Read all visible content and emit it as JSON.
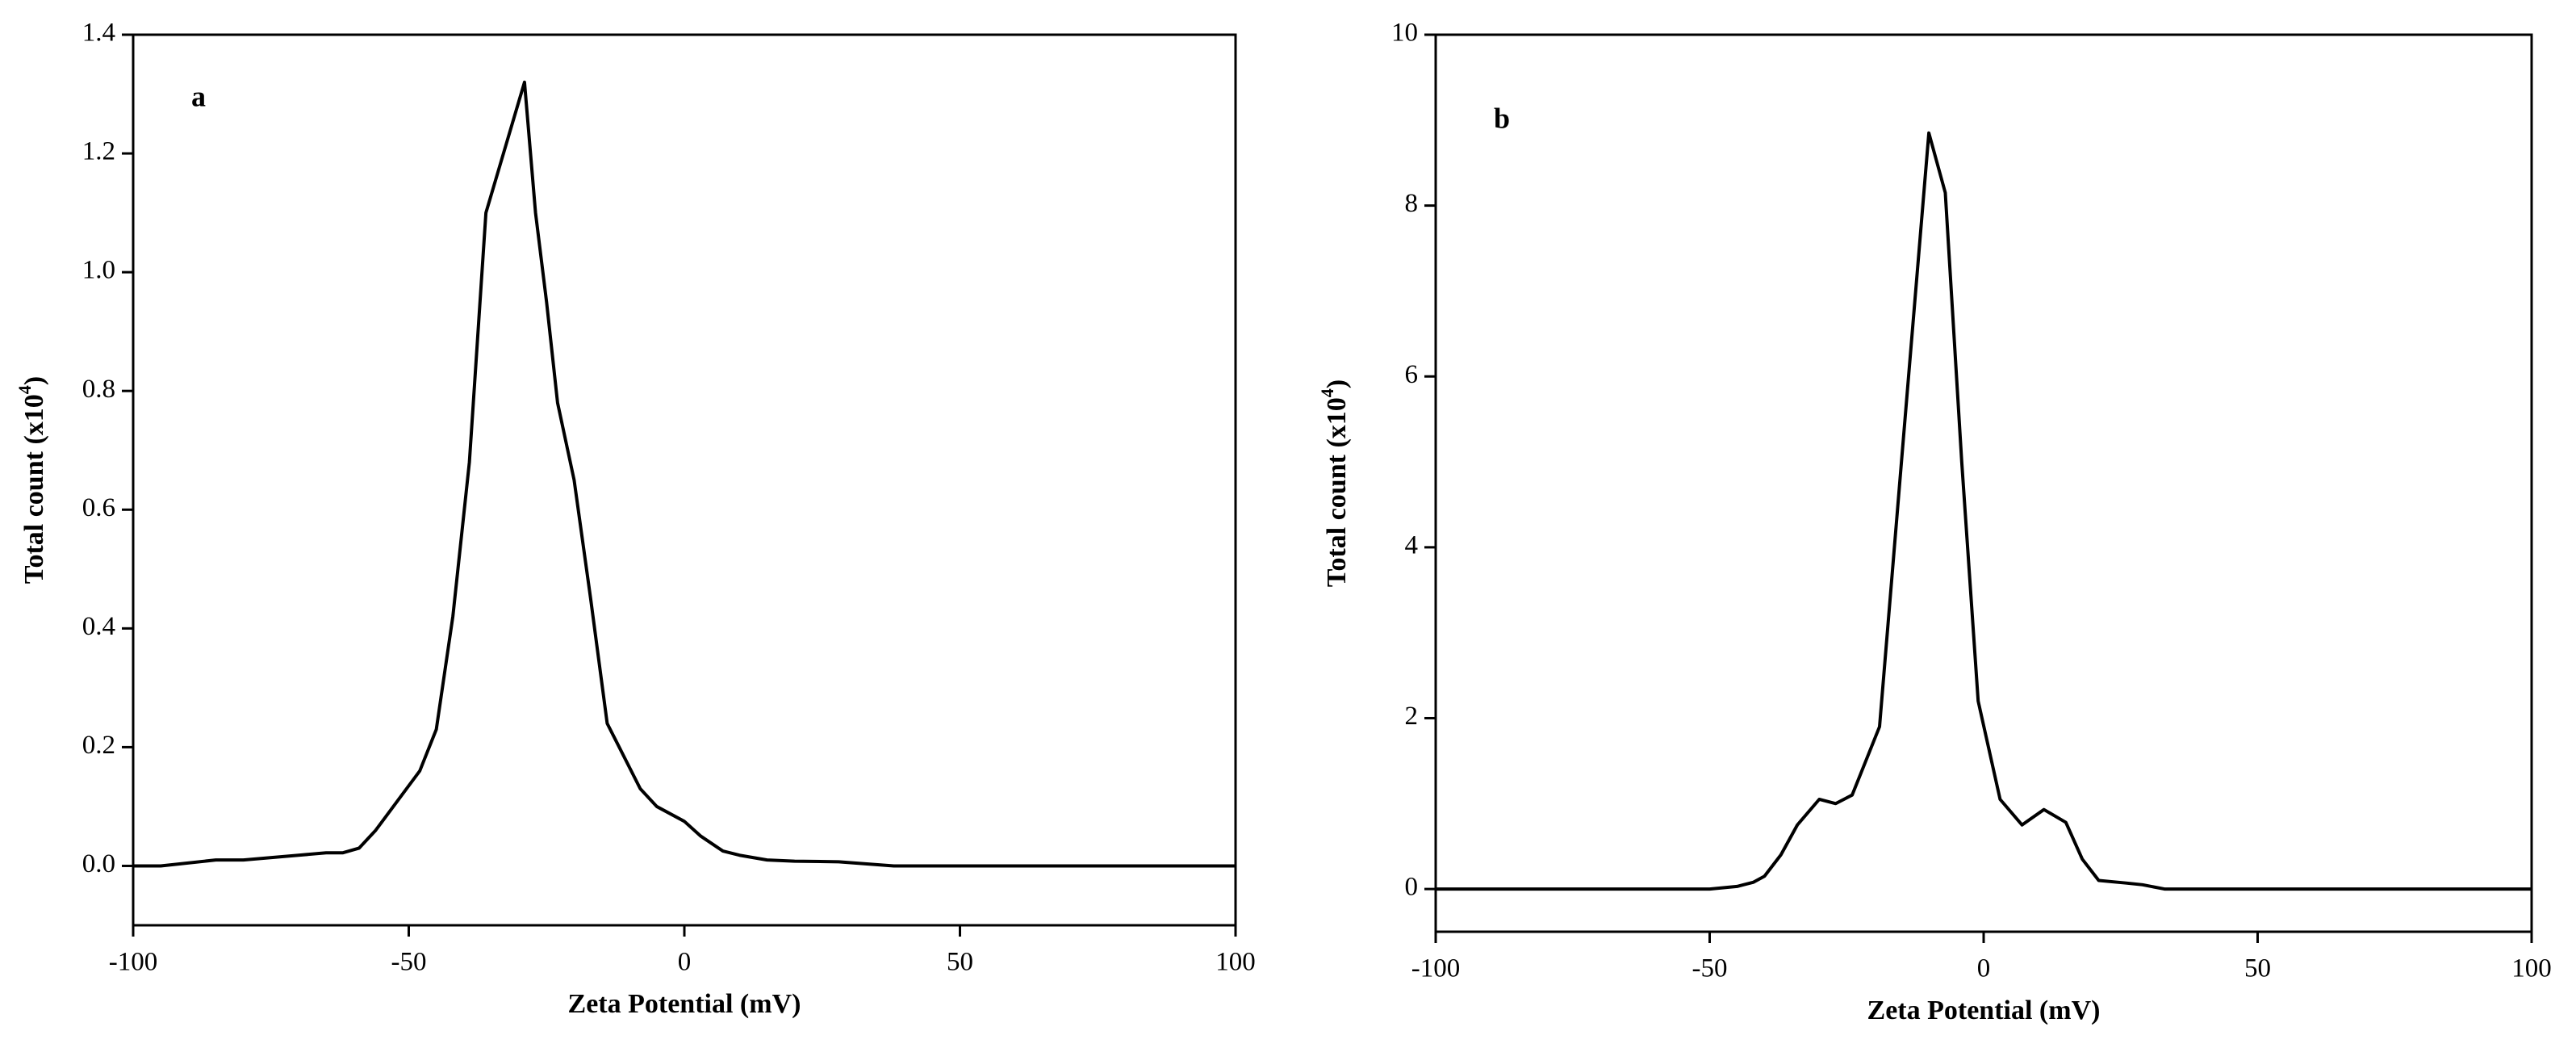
{
  "chart_data": [
    {
      "type": "line",
      "annotation": "a",
      "xlabel": "Zeta Potential (mV)",
      "ylabel": "Total count (x10",
      "ylabel_sup": "4",
      "ylabel_end": ")",
      "xlim": [
        -100,
        100
      ],
      "xticks": [
        -100,
        -50,
        0,
        50,
        100
      ],
      "ylim": [
        -0.1,
        1.4
      ],
      "yticks": [
        {
          "value": 0,
          "label": "0.0"
        },
        0.2,
        0.4,
        0.6,
        0.8,
        {
          "value": 1,
          "label": "1.0"
        },
        1.2,
        1.4
      ],
      "x": [
        -100,
        -95,
        -85,
        -80,
        -70,
        -65,
        -62,
        -59,
        -56,
        -52,
        -48,
        -45,
        -42,
        -39,
        -36,
        -29,
        -27,
        -25,
        -23,
        -20,
        -17,
        -14,
        -8,
        -5,
        0,
        3,
        7,
        10,
        15,
        20,
        28,
        38,
        50,
        100
      ],
      "series": [
        {
          "color": "#000000",
          "values": [
            0,
            0,
            0.01,
            0.01,
            0.018,
            0.022,
            0.022,
            0.03,
            0.06,
            0.11,
            0.16,
            0.23,
            0.42,
            0.68,
            1.1,
            1.32,
            1.1,
            0.95,
            0.78,
            0.65,
            0.45,
            0.24,
            0.13,
            0.1,
            0.075,
            0.05,
            0.025,
            0.018,
            0.01,
            0.008,
            0.007,
            0,
            0,
            0
          ]
        }
      ]
    },
    {
      "type": "line",
      "annotation": "b",
      "xlabel": "Zeta Potential (mV)",
      "ylabel": "Total count (x10",
      "ylabel_sup": "4",
      "ylabel_end": ")",
      "xlim": [
        -100,
        100
      ],
      "xticks": [
        -100,
        -50,
        0,
        50,
        100
      ],
      "ylim": [
        -0.5,
        10
      ],
      "yticks": [
        0,
        2,
        4,
        6,
        8,
        10
      ],
      "x": [
        -100,
        -50,
        -45,
        -42,
        -40,
        -37,
        -34,
        -30,
        -27,
        -24,
        -19,
        -15,
        -10,
        -7,
        -4,
        -1,
        3,
        7,
        11,
        15,
        18,
        21,
        26,
        29,
        33,
        100
      ],
      "series": [
        {
          "color": "#000000",
          "values": [
            0,
            0,
            0.03,
            0.08,
            0.15,
            0.4,
            0.75,
            1.05,
            1.0,
            1.1,
            1.9,
            5,
            8.85,
            8.15,
            5,
            2.2,
            1.05,
            0.75,
            0.93,
            0.78,
            0.35,
            0.1,
            0.07,
            0.05,
            0,
            0
          ]
        }
      ]
    }
  ]
}
